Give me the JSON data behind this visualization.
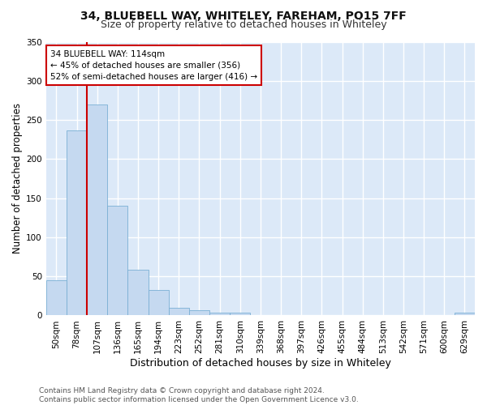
{
  "title": "34, BLUEBELL WAY, WHITELEY, FAREHAM, PO15 7FF",
  "subtitle": "Size of property relative to detached houses in Whiteley",
  "xlabel": "Distribution of detached houses by size in Whiteley",
  "ylabel": "Number of detached properties",
  "bin_labels": [
    "50sqm",
    "78sqm",
    "107sqm",
    "136sqm",
    "165sqm",
    "194sqm",
    "223sqm",
    "252sqm",
    "281sqm",
    "310sqm",
    "339sqm",
    "368sqm",
    "397sqm",
    "426sqm",
    "455sqm",
    "484sqm",
    "513sqm",
    "542sqm",
    "571sqm",
    "600sqm",
    "629sqm"
  ],
  "bar_heights": [
    45,
    237,
    270,
    140,
    58,
    33,
    10,
    7,
    4,
    4,
    0,
    0,
    0,
    0,
    0,
    0,
    0,
    0,
    0,
    0,
    4
  ],
  "bar_color": "#c5d9f0",
  "bar_edgecolor": "#7aafd4",
  "annotation_line1": "34 BLUEBELL WAY: 114sqm",
  "annotation_line2": "← 45% of detached houses are smaller (356)",
  "annotation_line3": "52% of semi-detached houses are larger (416) →",
  "annotation_box_color": "#ffffff",
  "annotation_box_edgecolor": "#cc0000",
  "footer_text": "Contains HM Land Registry data © Crown copyright and database right 2024.\nContains public sector information licensed under the Open Government Licence v3.0.",
  "ylim": [
    0,
    350
  ],
  "yticks": [
    0,
    50,
    100,
    150,
    200,
    250,
    300,
    350
  ],
  "plot_bg_color": "#dce9f8",
  "fig_bg_color": "#ffffff",
  "grid_color": "#ffffff",
  "title_fontsize": 10,
  "subtitle_fontsize": 9,
  "ylabel_fontsize": 8.5,
  "xlabel_fontsize": 9,
  "tick_fontsize": 7.5,
  "footer_fontsize": 6.5,
  "red_line_index": 2,
  "red_line_color": "#cc0000"
}
